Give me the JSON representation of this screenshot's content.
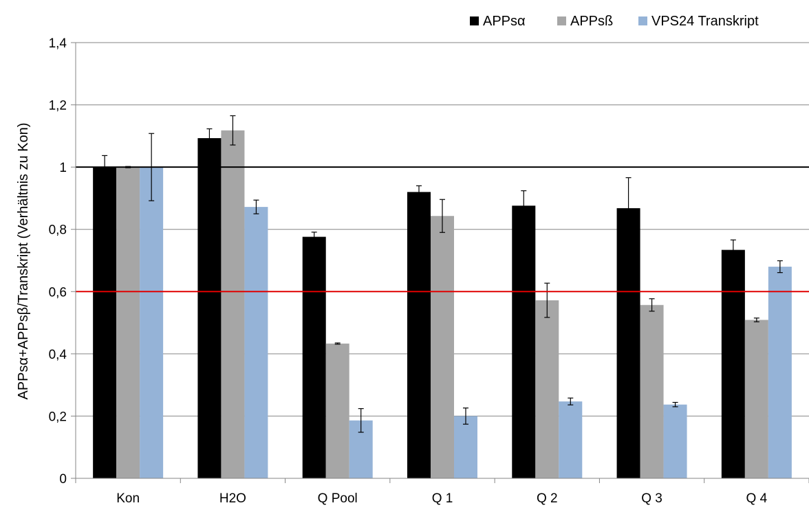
{
  "chart_data": {
    "type": "bar",
    "title": "",
    "xlabel": "",
    "ylabel": "APPsα+APPsβ/Transkript (Verhältnis zu Kon)",
    "ylim": [
      0,
      1.4
    ],
    "yticks": [
      0,
      0.2,
      0.4,
      0.6,
      0.8,
      1,
      1.2,
      1.4
    ],
    "ytick_labels": [
      "0",
      "0,2",
      "0,4",
      "0,6",
      "0,8",
      "1",
      "1,2",
      "1,4"
    ],
    "grid": true,
    "legend_position": "top-right",
    "categories": [
      "Kon",
      "H2O",
      "Q Pool",
      "Q 1",
      "Q 2",
      "Q 3",
      "Q 4"
    ],
    "series": [
      {
        "name": "APPsα",
        "color": "#000000",
        "values": [
          1.0,
          1.093,
          0.776,
          0.92,
          0.876,
          0.868,
          0.734
        ],
        "errors": [
          0.037,
          0.03,
          0.015,
          0.02,
          0.048,
          0.098,
          0.032
        ]
      },
      {
        "name": "APPsß",
        "color": "#a6a6a6",
        "values": [
          1.0,
          1.118,
          0.433,
          0.843,
          0.572,
          0.557,
          0.509
        ],
        "errors": [
          0.002,
          0.047,
          0.002,
          0.053,
          0.055,
          0.02,
          0.006
        ]
      },
      {
        "name": "VPS24 Transkript",
        "color": "#95b3d7",
        "values": [
          1.0,
          0.872,
          0.186,
          0.2,
          0.247,
          0.237,
          0.68
        ],
        "errors": [
          0.108,
          0.022,
          0.038,
          0.026,
          0.011,
          0.007,
          0.019
        ]
      }
    ],
    "reference_lines": [
      {
        "value": 1.0,
        "color": "#000000"
      },
      {
        "value": 0.6,
        "color": "#e00000"
      }
    ]
  }
}
